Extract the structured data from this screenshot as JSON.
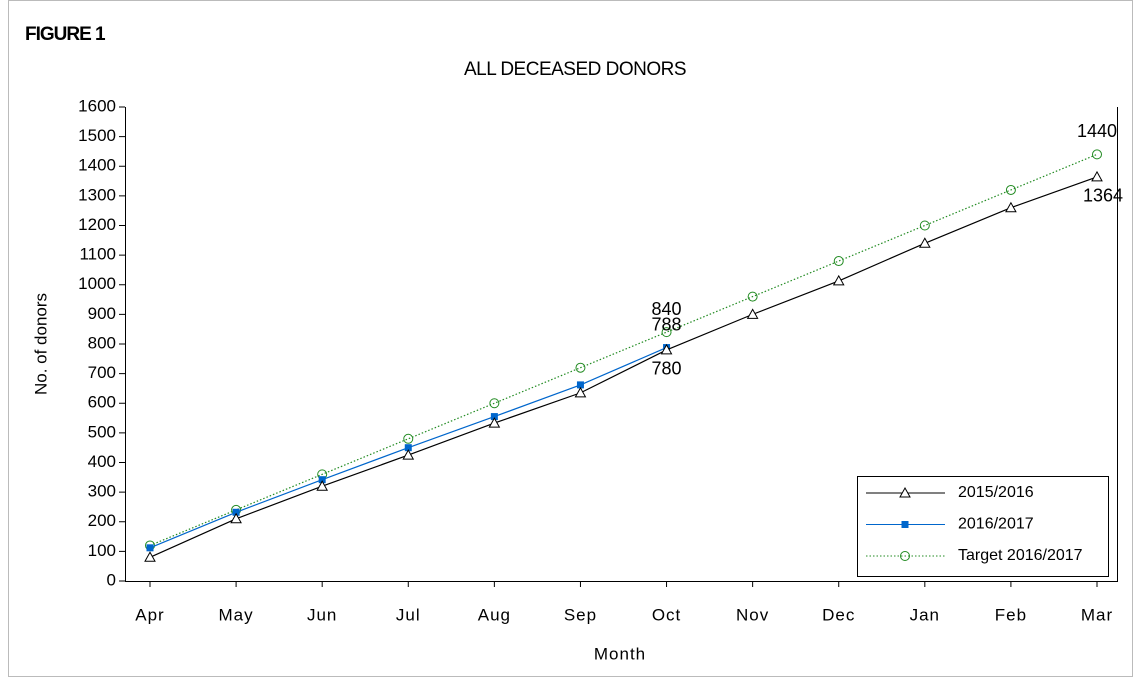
{
  "chart_data": {
    "type": "line",
    "figure_label": "FIGURE 1",
    "title": "ALL DECEASED DONORS",
    "x_label": "Month",
    "y_label": "No. of donors",
    "categories": [
      "Apr",
      "May",
      "Jun",
      "Jul",
      "Aug",
      "Sep",
      "Oct",
      "Nov",
      "Dec",
      "Jan",
      "Feb",
      "Mar"
    ],
    "ylim": [
      0,
      1600
    ],
    "yticks": [
      0,
      100,
      200,
      300,
      400,
      500,
      600,
      700,
      800,
      900,
      1000,
      1100,
      1200,
      1300,
      1400,
      1500,
      1600
    ],
    "grid": false,
    "legend": "lower right",
    "series": [
      {
        "name": "2015/2016",
        "color": "#000000",
        "marker": "triangle",
        "dash": "solid",
        "values": [
          80,
          210,
          320,
          425,
          533,
          635,
          780,
          900,
          1013,
          1140,
          1260,
          1364
        ],
        "value_labels": [
          null,
          null,
          null,
          null,
          null,
          null,
          "780",
          null,
          null,
          null,
          null,
          "1364"
        ]
      },
      {
        "name": "2016/2017",
        "color": "#0066cc",
        "marker": "square",
        "dash": "solid",
        "values": [
          112,
          232,
          342,
          450,
          555,
          662,
          788,
          null,
          null,
          null,
          null,
          null
        ],
        "value_labels": [
          null,
          null,
          null,
          null,
          null,
          null,
          "788",
          null,
          null,
          null,
          null,
          null
        ]
      },
      {
        "name": "Target 2016/2017",
        "color": "#228b22",
        "marker": "circle",
        "dash": "dotted",
        "values": [
          120,
          240,
          360,
          480,
          600,
          720,
          840,
          960,
          1080,
          1200,
          1320,
          1440
        ],
        "value_labels": [
          null,
          null,
          null,
          null,
          null,
          null,
          "840",
          null,
          null,
          null,
          null,
          "1440"
        ]
      }
    ]
  }
}
